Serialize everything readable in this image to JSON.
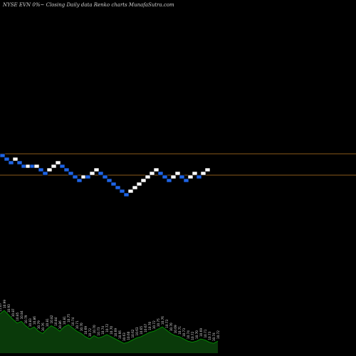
{
  "chart_data": {
    "type": "renko",
    "title": "NYSE EVN  0%~  Closing Daily data  Renko  charts MunafaSutra.com",
    "colors": {
      "background": "#000000",
      "up_brick": "#ffffff",
      "down_brick": "#1e64e6",
      "brick_outline": "#000000",
      "reference_line": "#8a5a1a",
      "volume_fill": "#0a3a0a",
      "volume_line": "#00a000",
      "volume_label": "#dddddd"
    },
    "reference_levels": [
      11.2,
      10.6
    ],
    "brick_size": 0.1,
    "bricks": [
      {
        "dir": "down",
        "top": 11.2,
        "bottom": 11.1
      },
      {
        "dir": "down",
        "top": 11.1,
        "bottom": 11.0
      },
      {
        "dir": "down",
        "top": 11.0,
        "bottom": 10.9
      },
      {
        "dir": "up",
        "top": 11.1,
        "bottom": 11.0
      },
      {
        "dir": "down",
        "top": 11.0,
        "bottom": 10.9
      },
      {
        "dir": "down",
        "top": 10.9,
        "bottom": 10.8
      },
      {
        "dir": "up",
        "top": 10.9,
        "bottom": 10.8
      },
      {
        "dir": "down",
        "top": 10.9,
        "bottom": 10.8
      },
      {
        "dir": "up",
        "top": 10.9,
        "bottom": 10.8
      },
      {
        "dir": "down",
        "top": 10.8,
        "bottom": 10.7
      },
      {
        "dir": "down",
        "top": 10.7,
        "bottom": 10.6
      },
      {
        "dir": "up",
        "top": 10.8,
        "bottom": 10.7
      },
      {
        "dir": "up",
        "top": 10.9,
        "bottom": 10.8
      },
      {
        "dir": "up",
        "top": 11.0,
        "bottom": 10.9
      },
      {
        "dir": "down",
        "top": 10.9,
        "bottom": 10.8
      },
      {
        "dir": "down",
        "top": 10.8,
        "bottom": 10.7
      },
      {
        "dir": "down",
        "top": 10.7,
        "bottom": 10.6
      },
      {
        "dir": "down",
        "top": 10.6,
        "bottom": 10.5
      },
      {
        "dir": "down",
        "top": 10.5,
        "bottom": 10.4
      },
      {
        "dir": "up",
        "top": 10.6,
        "bottom": 10.5
      },
      {
        "dir": "down",
        "top": 10.6,
        "bottom": 10.5
      },
      {
        "dir": "up",
        "top": 10.7,
        "bottom": 10.6
      },
      {
        "dir": "up",
        "top": 10.8,
        "bottom": 10.7
      },
      {
        "dir": "down",
        "top": 10.7,
        "bottom": 10.6
      },
      {
        "dir": "down",
        "top": 10.6,
        "bottom": 10.5
      },
      {
        "dir": "down",
        "top": 10.5,
        "bottom": 10.4
      },
      {
        "dir": "down",
        "top": 10.4,
        "bottom": 10.3
      },
      {
        "dir": "down",
        "top": 10.3,
        "bottom": 10.2
      },
      {
        "dir": "down",
        "top": 10.2,
        "bottom": 10.1
      },
      {
        "dir": "down",
        "top": 10.1,
        "bottom": 10.0
      },
      {
        "dir": "up",
        "top": 10.2,
        "bottom": 10.1
      },
      {
        "dir": "up",
        "top": 10.3,
        "bottom": 10.2
      },
      {
        "dir": "up",
        "top": 10.4,
        "bottom": 10.3
      },
      {
        "dir": "up",
        "top": 10.5,
        "bottom": 10.4
      },
      {
        "dir": "up",
        "top": 10.6,
        "bottom": 10.5
      },
      {
        "dir": "up",
        "top": 10.7,
        "bottom": 10.6
      },
      {
        "dir": "up",
        "top": 10.8,
        "bottom": 10.7
      },
      {
        "dir": "down",
        "top": 10.7,
        "bottom": 10.6
      },
      {
        "dir": "down",
        "top": 10.6,
        "bottom": 10.5
      },
      {
        "dir": "down",
        "top": 10.5,
        "bottom": 10.4
      },
      {
        "dir": "up",
        "top": 10.6,
        "bottom": 10.5
      },
      {
        "dir": "up",
        "top": 10.7,
        "bottom": 10.6
      },
      {
        "dir": "down",
        "top": 10.6,
        "bottom": 10.5
      },
      {
        "dir": "down",
        "top": 10.5,
        "bottom": 10.4
      },
      {
        "dir": "up",
        "top": 10.6,
        "bottom": 10.5
      },
      {
        "dir": "up",
        "top": 10.7,
        "bottom": 10.6
      },
      {
        "dir": "down",
        "top": 10.6,
        "bottom": 10.5
      },
      {
        "dir": "up",
        "top": 10.7,
        "bottom": 10.6
      },
      {
        "dir": "up",
        "top": 10.8,
        "bottom": 10.7
      }
    ],
    "volume_labels": [
      "11.07",
      "10.99",
      "10.93",
      "10.87",
      "10.85",
      "10.84",
      "10.79",
      "10.83",
      "10.86",
      "10.79",
      "10.76",
      "10.81",
      "10.82",
      "10.84",
      "10.86",
      "10.81",
      "10.75",
      "10.74",
      "10.71",
      "10.70",
      "10.69",
      "10.72",
      "10.70",
      "10.73",
      "10.74",
      "10.72",
      "10.70",
      "10.69",
      "10.66",
      "10.63",
      "10.60",
      "10.62",
      "10.63",
      "10.65",
      "10.67",
      "10.70",
      "10.72",
      "10.75",
      "10.76",
      "10.73",
      "10.70",
      "10.69",
      "10.71",
      "10.73",
      "10.74",
      "10.72",
      "10.70",
      "10.69",
      "10.71",
      "10.73",
      "10.74",
      "10.72"
    ],
    "volume_values": [
      72,
      78,
      70,
      62,
      55,
      58,
      50,
      44,
      48,
      40,
      36,
      44,
      50,
      46,
      40,
      48,
      52,
      46,
      40,
      36,
      30,
      26,
      32,
      28,
      30,
      34,
      30,
      26,
      22,
      18,
      20,
      24,
      28,
      30,
      34,
      38,
      40,
      44,
      48,
      42,
      36,
      32,
      30,
      26,
      22,
      20,
      22,
      26,
      24,
      20,
      18,
      22
    ]
  }
}
